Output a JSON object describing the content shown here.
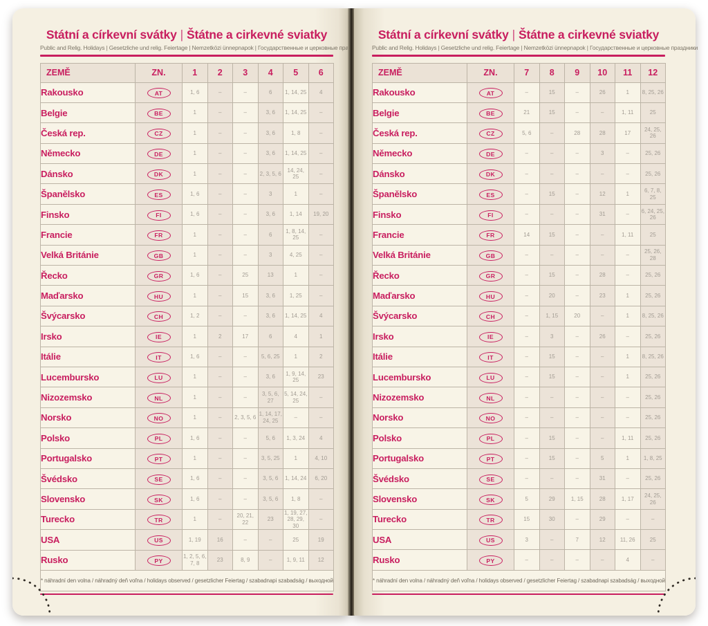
{
  "accent_color": "#c81e5f",
  "value_color": "#a29c93",
  "page_color": "#f5f0e2",
  "pages": [
    {
      "title_cs": "Státní a církevní svátky",
      "title_separator": "|",
      "title_sk": "Štátne a cirkevné sviatky",
      "subtitle": "Public and Relig. Holidays | Gesetzliche und relig. Feiertage | Nemzetközi ünnepnapok | Государственные и церковные праздники",
      "columns": [
        "ZEMĚ",
        "ZN.",
        "1",
        "2",
        "3",
        "4",
        "5",
        "6"
      ],
      "rows": [
        {
          "country": "Rakousko",
          "code": "AT",
          "months": [
            "1, 6",
            "–",
            "–",
            "6",
            "1, 14, 25",
            "4"
          ]
        },
        {
          "country": "Belgie",
          "code": "BE",
          "months": [
            "1",
            "–",
            "–",
            "3, 6",
            "1, 14, 25",
            "–"
          ]
        },
        {
          "country": "Česká rep.",
          "code": "CZ",
          "months": [
            "1",
            "–",
            "–",
            "3, 6",
            "1, 8",
            "–"
          ]
        },
        {
          "country": "Německo",
          "code": "DE",
          "months": [
            "1",
            "–",
            "–",
            "3, 6",
            "1, 14, 25",
            "–"
          ]
        },
        {
          "country": "Dánsko",
          "code": "DK",
          "months": [
            "1",
            "–",
            "–",
            "2, 3, 5, 6",
            "14, 24, 25",
            "–"
          ]
        },
        {
          "country": "Španělsko",
          "code": "ES",
          "months": [
            "1, 6",
            "–",
            "–",
            "3",
            "1",
            "–"
          ]
        },
        {
          "country": "Finsko",
          "code": "FI",
          "months": [
            "1, 6",
            "–",
            "–",
            "3, 6",
            "1, 14",
            "19, 20"
          ]
        },
        {
          "country": "Francie",
          "code": "FR",
          "months": [
            "1",
            "–",
            "–",
            "6",
            "1, 8, 14, 25",
            "–"
          ]
        },
        {
          "country": "Velká Británie",
          "code": "GB",
          "months": [
            "1",
            "–",
            "–",
            "3",
            "4, 25",
            "–"
          ]
        },
        {
          "country": "Řecko",
          "code": "GR",
          "months": [
            "1, 6",
            "–",
            "25",
            "13",
            "1",
            "–"
          ]
        },
        {
          "country": "Maďarsko",
          "code": "HU",
          "months": [
            "1",
            "–",
            "15",
            "3, 6",
            "1, 25",
            "–"
          ]
        },
        {
          "country": "Švýcarsko",
          "code": "CH",
          "months": [
            "1, 2",
            "–",
            "–",
            "3, 6",
            "1, 14, 25",
            "4"
          ]
        },
        {
          "country": "Irsko",
          "code": "IE",
          "months": [
            "1",
            "2",
            "17",
            "6",
            "4",
            "1"
          ]
        },
        {
          "country": "Itálie",
          "code": "IT",
          "months": [
            "1, 6",
            "–",
            "–",
            "5, 6, 25",
            "1",
            "2"
          ]
        },
        {
          "country": "Lucembursko",
          "code": "LU",
          "months": [
            "1",
            "–",
            "–",
            "3, 6",
            "1, 9, 14, 25",
            "23"
          ]
        },
        {
          "country": "Nizozemsko",
          "code": "NL",
          "months": [
            "1",
            "–",
            "–",
            "3, 5, 6, 27",
            "5, 14, 24, 25",
            "–"
          ]
        },
        {
          "country": "Norsko",
          "code": "NO",
          "months": [
            "1",
            "–",
            "2, 3, 5, 6",
            "1, 14, 17, 24, 25",
            "–",
            "–"
          ]
        },
        {
          "country": "Polsko",
          "code": "PL",
          "months": [
            "1, 6",
            "–",
            "–",
            "5, 6",
            "1, 3, 24",
            "4"
          ]
        },
        {
          "country": "Portugalsko",
          "code": "PT",
          "months": [
            "1",
            "–",
            "–",
            "3, 5, 25",
            "1",
            "4, 10"
          ]
        },
        {
          "country": "Švédsko",
          "code": "SE",
          "months": [
            "1, 6",
            "–",
            "–",
            "3, 5, 6",
            "1, 14, 24",
            "6, 20"
          ]
        },
        {
          "country": "Slovensko",
          "code": "SK",
          "months": [
            "1, 6",
            "–",
            "–",
            "3, 5, 6",
            "1, 8",
            "–"
          ]
        },
        {
          "country": "Turecko",
          "code": "TR",
          "months": [
            "1",
            "–",
            "20, 21, 22",
            "23",
            "1, 19, 27, 28, 29, 30",
            "–"
          ]
        },
        {
          "country": "USA",
          "code": "US",
          "months": [
            "1, 19",
            "16",
            "–",
            "–",
            "25",
            "19"
          ]
        },
        {
          "country": "Rusko",
          "code": "PY",
          "months": [
            "1, 2, 5, 6, 7, 8",
            "23",
            "8, 9",
            "–",
            "1, 9, 11",
            "12"
          ]
        }
      ],
      "footnote": "* náhradní den volna / náhradný deň voľna / holidays observed / gesetzlicher Feiertag / szabadnapi szabadság / выходной день"
    },
    {
      "title_cs": "Státní a církevní svátky",
      "title_separator": "|",
      "title_sk": "Štátne a cirkevné sviatky",
      "subtitle": "Public and Relig. Holidays | Gesetzliche und relig. Feiertage | Nemzetközi ünnepnapok | Государственные и церковные праздники",
      "columns": [
        "ZEMĚ",
        "ZN.",
        "7",
        "8",
        "9",
        "10",
        "11",
        "12"
      ],
      "rows": [
        {
          "country": "Rakousko",
          "code": "AT",
          "months": [
            "–",
            "15",
            "–",
            "26",
            "1",
            "8, 25, 26"
          ]
        },
        {
          "country": "Belgie",
          "code": "BE",
          "months": [
            "21",
            "15",
            "–",
            "–",
            "1, 11",
            "25"
          ]
        },
        {
          "country": "Česká rep.",
          "code": "CZ",
          "months": [
            "5, 6",
            "–",
            "28",
            "28",
            "17",
            "24, 25, 26"
          ]
        },
        {
          "country": "Německo",
          "code": "DE",
          "months": [
            "–",
            "–",
            "–",
            "3",
            "–",
            "25, 26"
          ]
        },
        {
          "country": "Dánsko",
          "code": "DK",
          "months": [
            "–",
            "–",
            "–",
            "–",
            "–",
            "25, 26"
          ]
        },
        {
          "country": "Španělsko",
          "code": "ES",
          "months": [
            "–",
            "15",
            "–",
            "12",
            "1",
            "6, 7, 8, 25"
          ]
        },
        {
          "country": "Finsko",
          "code": "FI",
          "months": [
            "–",
            "–",
            "–",
            "31",
            "–",
            "6, 24, 25, 26"
          ]
        },
        {
          "country": "Francie",
          "code": "FR",
          "months": [
            "14",
            "15",
            "–",
            "–",
            "1, 11",
            "25"
          ]
        },
        {
          "country": "Velká Británie",
          "code": "GB",
          "months": [
            "–",
            "–",
            "–",
            "–",
            "–",
            "25, 26, 28"
          ]
        },
        {
          "country": "Řecko",
          "code": "GR",
          "months": [
            "–",
            "15",
            "–",
            "28",
            "–",
            "25, 26"
          ]
        },
        {
          "country": "Maďarsko",
          "code": "HU",
          "months": [
            "–",
            "20",
            "–",
            "23",
            "1",
            "25, 26"
          ]
        },
        {
          "country": "Švýcarsko",
          "code": "CH",
          "months": [
            "–",
            "1, 15",
            "20",
            "–",
            "1",
            "8, 25, 26"
          ]
        },
        {
          "country": "Irsko",
          "code": "IE",
          "months": [
            "–",
            "3",
            "–",
            "26",
            "–",
            "25, 26"
          ]
        },
        {
          "country": "Itálie",
          "code": "IT",
          "months": [
            "–",
            "15",
            "–",
            "–",
            "1",
            "8, 25, 26"
          ]
        },
        {
          "country": "Lucembursko",
          "code": "LU",
          "months": [
            "–",
            "15",
            "–",
            "–",
            "1",
            "25, 26"
          ]
        },
        {
          "country": "Nizozemsko",
          "code": "NL",
          "months": [
            "–",
            "–",
            "–",
            "–",
            "–",
            "25, 26"
          ]
        },
        {
          "country": "Norsko",
          "code": "NO",
          "months": [
            "–",
            "–",
            "–",
            "–",
            "–",
            "25, 26"
          ]
        },
        {
          "country": "Polsko",
          "code": "PL",
          "months": [
            "–",
            "15",
            "–",
            "–",
            "1, 11",
            "25, 26"
          ]
        },
        {
          "country": "Portugalsko",
          "code": "PT",
          "months": [
            "–",
            "15",
            "–",
            "5",
            "1",
            "1, 8, 25"
          ]
        },
        {
          "country": "Švédsko",
          "code": "SE",
          "months": [
            "–",
            "–",
            "–",
            "31",
            "–",
            "25, 26"
          ]
        },
        {
          "country": "Slovensko",
          "code": "SK",
          "months": [
            "5",
            "29",
            "1, 15",
            "28",
            "1, 17",
            "24, 25, 26"
          ]
        },
        {
          "country": "Turecko",
          "code": "TR",
          "months": [
            "15",
            "30",
            "–",
            "29",
            "–",
            "–"
          ]
        },
        {
          "country": "USA",
          "code": "US",
          "months": [
            "3",
            "–",
            "7",
            "12",
            "11, 26",
            "25"
          ]
        },
        {
          "country": "Rusko",
          "code": "PY",
          "months": [
            "–",
            "–",
            "–",
            "–",
            "4",
            "–"
          ]
        }
      ],
      "footnote": "* náhradní den volna / náhradný deň voľna / holidays observed / gesetzlicher Feiertag / szabadnapi szabadság / выходной день"
    }
  ]
}
